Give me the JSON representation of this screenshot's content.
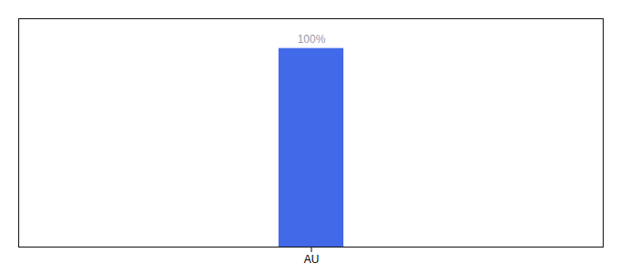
{
  "chart_data": {
    "type": "bar",
    "categories": [
      "AU"
    ],
    "values": [
      100
    ],
    "value_labels": [
      "100%"
    ],
    "data_labels": true,
    "color": "#4169e8",
    "ylim": [
      0,
      115
    ],
    "tick_labels": "x",
    "grid": false
  }
}
